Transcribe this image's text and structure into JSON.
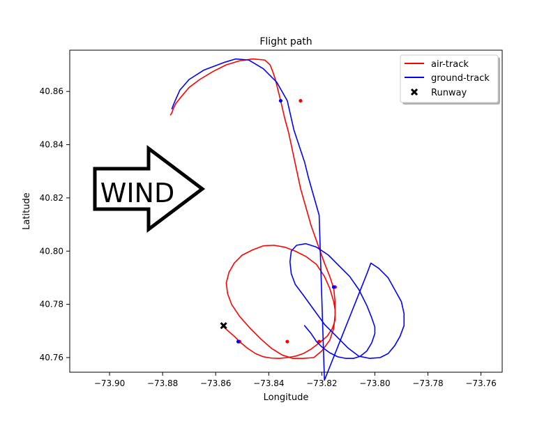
{
  "chart_data": {
    "type": "line",
    "title": "Flight path",
    "xlabel": "Longitude",
    "ylabel": "Latitude",
    "xlim": [
      -73.915,
      -73.752
    ],
    "ylim": [
      40.7545,
      40.8755
    ],
    "xticks": [
      -73.9,
      -73.88,
      -73.86,
      -73.84,
      -73.82,
      -73.8,
      -73.78,
      -73.76
    ],
    "xtick_labels": [
      "−73.90",
      "−73.88",
      "−73.86",
      "−73.84",
      "−73.82",
      "−73.80",
      "−73.78",
      "−73.76"
    ],
    "yticks": [
      40.76,
      40.78,
      40.8,
      40.82,
      40.84,
      40.86
    ],
    "ytick_labels": [
      "40.76",
      "40.78",
      "40.80",
      "40.82",
      "40.84",
      "40.86"
    ],
    "grid": false,
    "legend_position": "top-right",
    "series": [
      {
        "name": "air-track",
        "color": "#ff0000",
        "x": [
          -73.857,
          -73.853,
          -73.851,
          -73.848,
          -73.845,
          -73.842,
          -73.839,
          -73.836,
          -73.833,
          -73.83,
          -73.827,
          -73.824,
          -73.821,
          -73.818,
          -73.816,
          -73.815,
          -73.815,
          -73.8155,
          -73.817,
          -73.819,
          -73.822,
          -73.826,
          -73.83,
          -73.834,
          -73.838,
          -73.842,
          -73.846,
          -73.85,
          -73.853,
          -73.855,
          -73.856,
          -73.8555,
          -73.854,
          -73.851,
          -73.847,
          -73.843,
          -73.839,
          -73.835,
          -73.831,
          -73.827,
          -73.823,
          -73.82,
          -73.817,
          -73.8155,
          -73.815,
          -73.815,
          -73.8155,
          -73.817,
          -73.819,
          -73.8215,
          -73.824,
          -73.826,
          -73.828,
          -73.8295,
          -73.831,
          -73.8325,
          -73.834,
          -73.8355,
          -73.8365,
          -73.8375,
          -73.8385,
          -73.8395,
          -73.8415,
          -73.846,
          -73.851,
          -73.856,
          -73.861,
          -73.866,
          -73.87,
          -73.873,
          -73.875,
          -73.876,
          -73.8765,
          -73.877
        ],
        "y": [
          40.7715,
          40.768,
          40.766,
          40.7635,
          40.7615,
          40.7603,
          40.7598,
          40.7597,
          40.76,
          40.7605,
          40.7615,
          40.7632,
          40.7655,
          40.768,
          40.771,
          40.774,
          40.778,
          40.781,
          40.786,
          40.7905,
          40.795,
          40.798,
          40.8,
          40.8015,
          40.8022,
          40.802,
          40.8005,
          40.7985,
          40.7955,
          40.792,
          40.788,
          40.784,
          40.78,
          40.7755,
          40.771,
          40.767,
          40.7635,
          40.761,
          40.7597,
          40.7597,
          40.76,
          40.7625,
          40.7665,
          40.771,
          40.776,
          40.781,
          40.786,
          40.7905,
          40.7955,
          40.8025,
          40.8095,
          40.8165,
          40.8235,
          40.8305,
          40.8375,
          40.8445,
          40.85,
          40.8565,
          40.8605,
          40.8645,
          40.8675,
          40.87,
          40.8718,
          40.8722,
          40.8715,
          40.87,
          40.8675,
          40.8645,
          40.8615,
          40.858,
          40.8555,
          40.8535,
          40.852,
          40.8512
        ],
        "markers_x": [
          -73.851,
          -73.833,
          -73.821,
          -73.815,
          -73.828
        ],
        "markers_y": [
          40.766,
          40.766,
          40.766,
          40.7865,
          40.8565
        ],
        "marker_color": "#ff0000"
      },
      {
        "name": "ground-track",
        "color": "#0000ff",
        "x": [
          -73.8265,
          -73.824,
          -73.822,
          -73.82,
          -73.817,
          -73.814,
          -73.811,
          -73.808,
          -73.8055,
          -73.803,
          -73.8012,
          -73.8,
          -73.8,
          -73.8012,
          -73.803,
          -73.806,
          -73.8095,
          -73.8135,
          -73.8175,
          -73.822,
          -73.826,
          -73.8295,
          -73.8315,
          -73.832,
          -73.8315,
          -73.83,
          -73.827,
          -73.823,
          -73.819,
          -73.8145,
          -73.81,
          -73.806,
          -73.802,
          -73.798,
          -73.795,
          -73.7925,
          -73.7905,
          -73.789,
          -73.789,
          -73.79,
          -73.7925,
          -73.795,
          -73.7985,
          -73.8015,
          -73.803,
          -73.805,
          -73.807,
          -73.809,
          -73.811,
          -73.813,
          -73.815,
          -73.817,
          -73.819,
          -73.821,
          -73.823,
          -73.825,
          -73.8265,
          -73.8285,
          -73.8305,
          -73.833,
          -73.837,
          -73.842,
          -73.8475,
          -73.8525,
          -73.8565,
          -73.8645,
          -73.87,
          -73.8735,
          -73.8755,
          -73.8765
        ],
        "y": [
          40.772,
          40.769,
          40.766,
          40.764,
          40.7618,
          40.7603,
          40.7597,
          40.7597,
          40.7605,
          40.7625,
          40.7655,
          40.769,
          40.7715,
          40.775,
          40.7795,
          40.7855,
          40.7905,
          40.7945,
          40.7985,
          40.8015,
          40.8028,
          40.8022,
          40.8,
          40.796,
          40.7915,
          40.7875,
          40.7835,
          40.778,
          40.7725,
          40.768,
          40.7635,
          40.7605,
          40.7597,
          40.76,
          40.7615,
          40.7645,
          40.768,
          40.772,
          40.7765,
          40.781,
          40.7855,
          40.79,
          40.7935,
          40.7955,
          40.7915,
          40.7865,
          40.7815,
          40.7765,
          40.7715,
          40.7665,
          40.7615,
          40.7565,
          40.7515,
          40.8135,
          40.8205,
          40.8275,
          40.8335,
          40.8395,
          40.8455,
          40.8565,
          40.8635,
          40.8685,
          40.8718,
          40.8722,
          40.871,
          40.868,
          40.8645,
          40.8605,
          40.856,
          40.8535
        ],
        "markers_x": [
          -73.8515,
          -73.8355,
          -73.8155
        ],
        "markers_y": [
          40.766,
          40.8565,
          40.7865
        ],
        "marker_color": "#0000ff"
      },
      {
        "name": "Runway",
        "color": "#000000",
        "x": [
          -73.857
        ],
        "y": [
          40.772
        ],
        "marker": "x"
      }
    ],
    "annotations": [
      {
        "text": "WIND",
        "shape": "right-arrow",
        "x": -73.88,
        "y": 40.8245
      }
    ]
  }
}
